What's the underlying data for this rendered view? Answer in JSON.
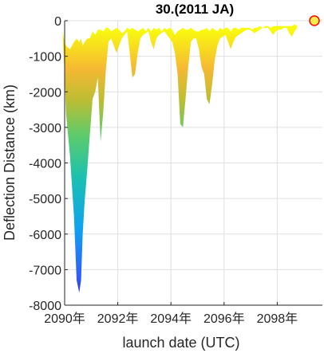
{
  "chart_data": {
    "type": "area",
    "title": "30.(2011 JA)",
    "xlabel": "launch date (UTC)",
    "ylabel": "Deflection Distance (km)",
    "xlim": [
      2090,
      2099.7
    ],
    "ylim": [
      -8000,
      0
    ],
    "x_ticks": [
      2090,
      2092,
      2094,
      2096,
      2098
    ],
    "x_tick_labels": [
      "2090年",
      "2092年",
      "2094年",
      "2096年",
      "2098年"
    ],
    "y_ticks": [
      0,
      -1000,
      -2000,
      -3000,
      -4000,
      -5000,
      -6000,
      -7000,
      -8000
    ],
    "y_tick_labels": [
      "0",
      "-1000",
      "-2000",
      "-3000",
      "-4000",
      "-5000",
      "-6000",
      "-7000",
      "-8000"
    ],
    "grid": true,
    "colormap": [
      "#3d26a8",
      "#2f5df9",
      "#10a2f0",
      "#1bc1b0",
      "#5fcb6a",
      "#bcbd33",
      "#f5b833",
      "#f9fb0e"
    ],
    "series": [
      {
        "x": [
          2089.92,
          2090.0,
          2090.05,
          2090.2,
          2090.35,
          2090.45,
          2090.55,
          2090.62,
          2090.68,
          2090.75,
          2090.85,
          2090.95,
          2091.05,
          2091.15,
          2091.25,
          2091.35,
          2091.45,
          2091.55,
          2091.65,
          2091.75,
          2091.85,
          2091.95,
          2092.05,
          2092.15,
          2092.25,
          2092.35,
          2092.45,
          2092.55,
          2092.65,
          2092.75,
          2092.85,
          2092.95,
          2093.05,
          2093.15,
          2093.25,
          2093.35,
          2093.45,
          2093.55,
          2093.65,
          2093.75,
          2093.85,
          2093.95,
          2094.05,
          2094.15,
          2094.25,
          2094.35,
          2094.45,
          2094.55,
          2094.65,
          2094.75,
          2094.85,
          2094.95,
          2095.05,
          2095.15,
          2095.25,
          2095.35,
          2095.45,
          2095.55,
          2095.65,
          2095.75,
          2095.85,
          2095.95,
          2096.05,
          2096.15,
          2096.25,
          2096.35,
          2096.45,
          2096.55,
          2096.65,
          2096.75,
          2096.85,
          2096.95,
          2097.05,
          2097.15,
          2097.25,
          2097.35,
          2097.45,
          2097.55,
          2097.65,
          2097.75,
          2097.85,
          2097.95,
          2098.05,
          2098.15,
          2098.25,
          2098.35,
          2098.45,
          2098.55,
          2098.65,
          2098.75
        ],
        "upper": [
          -300,
          -600,
          -700,
          -800,
          -600,
          -500,
          -600,
          -500,
          -700,
          -600,
          -500,
          -500,
          -300,
          -400,
          -250,
          -250,
          -300,
          -200,
          -200,
          -300,
          -250,
          -200,
          -250,
          -350,
          -300,
          -200,
          -250,
          -200,
          -250,
          -300,
          -250,
          -200,
          -300,
          -200,
          -300,
          -200,
          -250,
          -200,
          -300,
          -200,
          -250,
          -200,
          -250,
          -400,
          -300,
          -250,
          -200,
          -250,
          -250,
          -200,
          -250,
          -300,
          -300,
          -250,
          -250,
          -200,
          -300,
          -200,
          -250,
          -300,
          -200,
          -250,
          -200,
          -200,
          -300,
          -200,
          -200,
          -250,
          -200,
          -200,
          -200,
          -200,
          -250,
          -200,
          -200,
          -150,
          -200,
          -150,
          -150,
          -200,
          -150,
          -150,
          -150,
          -150,
          -150,
          -150,
          -150,
          -150,
          -100,
          -150
        ],
        "lower": [
          -300,
          -1500,
          -2600,
          -3800,
          -5500,
          -7300,
          -7650,
          -7300,
          -6000,
          -5100,
          -4200,
          -3200,
          -2200,
          -2000,
          -1600,
          -3400,
          -2600,
          -1400,
          -600,
          -500,
          -700,
          -900,
          -700,
          -500,
          -400,
          -300,
          -900,
          -1600,
          -1500,
          -900,
          -500,
          -400,
          -350,
          -300,
          -600,
          -800,
          -500,
          -400,
          -350,
          -300,
          -400,
          -500,
          -600,
          -900,
          -1500,
          -2900,
          -3000,
          -2200,
          -1300,
          -600,
          -500,
          -500,
          -800,
          -1300,
          -1500,
          -2200,
          -2350,
          -1800,
          -1100,
          -700,
          -500,
          -450,
          -400,
          -600,
          -800,
          -600,
          -450,
          -400,
          -350,
          -300,
          -250,
          -250,
          -300,
          -350,
          -300,
          -250,
          -200,
          -200,
          -200,
          -300,
          -400,
          -300,
          -250,
          -250,
          -200,
          -200,
          -350,
          -450,
          -300,
          -200
        ]
      }
    ],
    "markers": [
      {
        "x": 2099.4,
        "y": 0,
        "color": "#ff0000",
        "fill": "#f5e94b"
      }
    ]
  }
}
